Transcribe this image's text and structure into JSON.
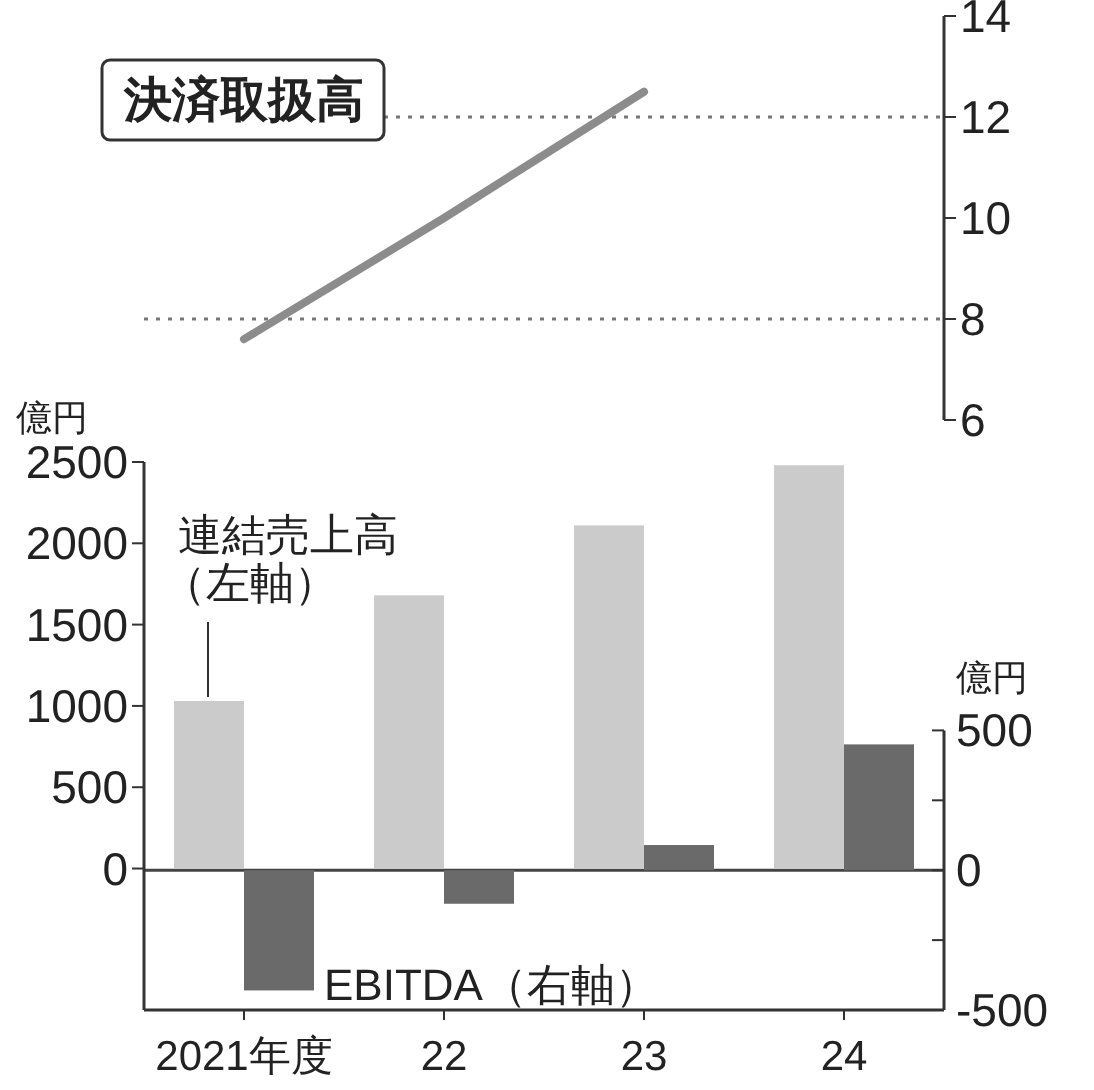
{
  "chart_data": [
    {
      "type": "line",
      "categories": [
        null,
        null,
        null,
        null
      ],
      "tick_labels": "y",
      "ylim": [
        6,
        14
      ],
      "yticks": [
        6,
        8,
        10,
        12,
        14
      ],
      "series": [
        {
          "name": "決済取扱高",
          "color": "#8c8c8c",
          "values": [
            7.6,
            10.0,
            12.5,
            null
          ]
        }
      ],
      "ref_lines": [
        {
          "axis": "y",
          "value": 8,
          "line_style": "dotted",
          "color": "#777777"
        },
        {
          "axis": "y",
          "value": 12,
          "line_style": "dotted",
          "color": "#777777"
        }
      ],
      "grid": false
    },
    {
      "type": "bar",
      "categories": [
        "2021年度",
        "22",
        "23",
        "24"
      ],
      "ylabel": "億円",
      "y2label": "億円",
      "ylim": [
        -870,
        2500
      ],
      "yticks": [
        0,
        500,
        1000,
        1500,
        2000,
        2500
      ],
      "y2lim": [
        -500,
        1460
      ],
      "y2ticks": [
        -500,
        {
          "value": -250,
          "label": null
        },
        0,
        {
          "value": 250,
          "label": null
        },
        500
      ],
      "series": [
        {
          "name": "連結売上高（左軸）",
          "color": "#cbcbcb",
          "values": [
            1030,
            1680,
            2110,
            2480
          ]
        },
        {
          "name": "EBITDA（右軸）",
          "color": "#6a6a6a",
          "axis": "y2",
          "values": [
            -430,
            -120,
            90,
            450
          ]
        }
      ],
      "ref_lines": [
        {
          "axis": "y2",
          "value": 0,
          "color": "#444444"
        }
      ],
      "grid": false
    }
  ]
}
